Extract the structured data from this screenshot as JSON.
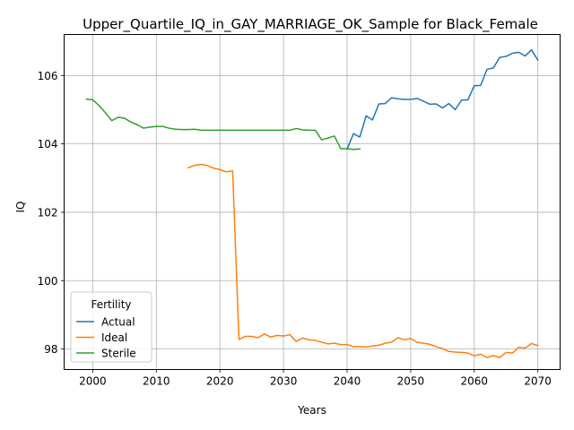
{
  "chart_data": {
    "type": "line",
    "title": "Upper_Quartile_IQ_in_GAY_MARRIAGE_OK_Sample for Black_Female",
    "xlabel": "Years",
    "ylabel": "IQ",
    "xlim": [
      1995.5,
      2073.5
    ],
    "ylim": [
      97.4,
      107.2
    ],
    "xticks": [
      2000,
      2010,
      2020,
      2030,
      2040,
      2050,
      2060,
      2070
    ],
    "yticks": [
      98,
      100,
      102,
      104,
      106
    ],
    "grid": true,
    "legend": {
      "title": "Fertility",
      "placement": "lower-left"
    },
    "series": [
      {
        "name": "Actual",
        "color": "#1f77b4",
        "x": [
          2040,
          2041,
          2042,
          2043,
          2044,
          2045,
          2046,
          2047,
          2048,
          2049,
          2050,
          2051,
          2052,
          2053,
          2054,
          2055,
          2056,
          2057,
          2058,
          2059,
          2060,
          2061,
          2062,
          2063,
          2064,
          2065,
          2066,
          2067,
          2068,
          2069,
          2070
        ],
        "y": [
          103.85,
          104.3,
          104.2,
          104.82,
          104.7,
          105.17,
          105.18,
          105.35,
          105.32,
          105.3,
          105.3,
          105.33,
          105.25,
          105.16,
          105.17,
          105.05,
          105.18,
          105.0,
          105.28,
          105.29,
          105.7,
          105.71,
          106.18,
          106.22,
          106.53,
          106.56,
          106.65,
          106.68,
          106.57,
          106.75,
          106.45
        ]
      },
      {
        "name": "Ideal",
        "color": "#ff7f0e",
        "x": [
          2015,
          2016,
          2017,
          2018,
          2019,
          2020,
          2021,
          2022,
          2023,
          2024,
          2025,
          2026,
          2027,
          2028,
          2029,
          2030,
          2031,
          2032,
          2033,
          2034,
          2035,
          2036,
          2037,
          2038,
          2039,
          2040,
          2041,
          2042,
          2043,
          2044,
          2045,
          2046,
          2047,
          2048,
          2049,
          2050,
          2051,
          2052,
          2053,
          2054,
          2055,
          2056,
          2057,
          2058,
          2059,
          2060,
          2061,
          2062,
          2063,
          2064,
          2065,
          2066,
          2067,
          2068,
          2069,
          2070
        ],
        "y": [
          103.3,
          103.37,
          103.4,
          103.37,
          103.29,
          103.25,
          103.18,
          103.21,
          98.28,
          98.37,
          98.37,
          98.33,
          98.44,
          98.35,
          98.4,
          98.38,
          98.42,
          98.22,
          98.32,
          98.27,
          98.25,
          98.2,
          98.15,
          98.17,
          98.13,
          98.13,
          98.07,
          98.07,
          98.06,
          98.09,
          98.11,
          98.17,
          98.2,
          98.33,
          98.27,
          98.31,
          98.2,
          98.17,
          98.14,
          98.07,
          98.01,
          97.93,
          97.91,
          97.9,
          97.88,
          97.8,
          97.85,
          97.75,
          97.81,
          97.75,
          97.9,
          97.88,
          98.05,
          98.03,
          98.16,
          98.1
        ]
      },
      {
        "name": "Sterile",
        "color": "#2ca02c",
        "x": [
          1999,
          2000,
          2001,
          2002,
          2003,
          2004,
          2005,
          2006,
          2007,
          2008,
          2009,
          2010,
          2011,
          2012,
          2013,
          2014,
          2015,
          2016,
          2017,
          2018,
          2019,
          2020,
          2021,
          2022,
          2023,
          2024,
          2025,
          2026,
          2027,
          2028,
          2029,
          2030,
          2031,
          2032,
          2033,
          2034,
          2035,
          2036,
          2037,
          2038,
          2039,
          2040,
          2041,
          2042
        ],
        "y": [
          105.31,
          105.29,
          105.12,
          104.91,
          104.68,
          104.78,
          104.75,
          104.64,
          104.56,
          104.46,
          104.49,
          104.51,
          104.51,
          104.46,
          104.43,
          104.42,
          104.42,
          104.43,
          104.4,
          104.4,
          104.4,
          104.4,
          104.4,
          104.4,
          104.4,
          104.4,
          104.4,
          104.4,
          104.4,
          104.4,
          104.4,
          104.4,
          104.4,
          104.45,
          104.41,
          104.4,
          104.4,
          104.12,
          104.17,
          104.23,
          103.86,
          103.86,
          103.84,
          103.85
        ]
      }
    ]
  }
}
